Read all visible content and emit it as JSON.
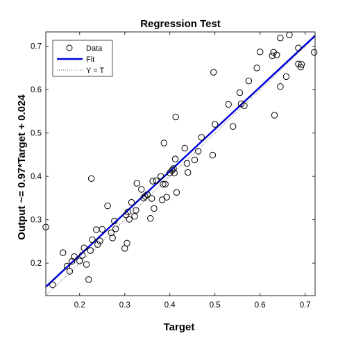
{
  "chart_data": {
    "type": "scatter",
    "title": "Regression Test",
    "xlabel": "Target",
    "ylabel": "Output ~= 0.97*Target + 0.024",
    "xlim": [
      0.125,
      0.722
    ],
    "ylim": [
      0.125,
      0.733
    ],
    "xticks": [
      0.2,
      0.3,
      0.4,
      0.5,
      0.6,
      0.7
    ],
    "yticks": [
      0.2,
      0.3,
      0.4,
      0.5,
      0.6,
      0.7
    ],
    "xtick_labels": [
      "0.2",
      "0.3",
      "0.4",
      "0.5",
      "0.6",
      "0.7"
    ],
    "ytick_labels": [
      "0.2",
      "0.3",
      "0.4",
      "0.5",
      "0.6",
      "0.7"
    ],
    "grid": false,
    "legend": {
      "placement": "top-left",
      "entries": [
        {
          "label": "Data",
          "style": "circle"
        },
        {
          "label": "Fit",
          "style": "line"
        },
        {
          "label": "Y = T",
          "style": "dotted"
        }
      ]
    },
    "fit": {
      "slope": 0.97,
      "intercept": 0.024,
      "color": "#0000dd"
    },
    "identity": {
      "color": "#555555"
    },
    "marker_color": "#000000",
    "points": [
      [
        0.125,
        0.283
      ],
      [
        0.14,
        0.15
      ],
      [
        0.163,
        0.224
      ],
      [
        0.172,
        0.193
      ],
      [
        0.178,
        0.181
      ],
      [
        0.183,
        0.204
      ],
      [
        0.188,
        0.215
      ],
      [
        0.2,
        0.205
      ],
      [
        0.206,
        0.218
      ],
      [
        0.21,
        0.235
      ],
      [
        0.215,
        0.197
      ],
      [
        0.22,
        0.162
      ],
      [
        0.224,
        0.229
      ],
      [
        0.226,
        0.395
      ],
      [
        0.228,
        0.254
      ],
      [
        0.237,
        0.277
      ],
      [
        0.24,
        0.243
      ],
      [
        0.245,
        0.251
      ],
      [
        0.25,
        0.278
      ],
      [
        0.262,
        0.332
      ],
      [
        0.27,
        0.27
      ],
      [
        0.273,
        0.258
      ],
      [
        0.277,
        0.297
      ],
      [
        0.28,
        0.279
      ],
      [
        0.3,
        0.234
      ],
      [
        0.303,
        0.311
      ],
      [
        0.305,
        0.246
      ],
      [
        0.307,
        0.318
      ],
      [
        0.31,
        0.301
      ],
      [
        0.315,
        0.34
      ],
      [
        0.322,
        0.308
      ],
      [
        0.325,
        0.322
      ],
      [
        0.327,
        0.384
      ],
      [
        0.337,
        0.37
      ],
      [
        0.342,
        0.35
      ],
      [
        0.345,
        0.354
      ],
      [
        0.35,
        0.358
      ],
      [
        0.357,
        0.303
      ],
      [
        0.36,
        0.349
      ],
      [
        0.362,
        0.389
      ],
      [
        0.365,
        0.326
      ],
      [
        0.37,
        0.39
      ],
      [
        0.38,
        0.4
      ],
      [
        0.383,
        0.346
      ],
      [
        0.385,
        0.382
      ],
      [
        0.387,
        0.477
      ],
      [
        0.39,
        0.382
      ],
      [
        0.393,
        0.352
      ],
      [
        0.4,
        0.408
      ],
      [
        0.405,
        0.414
      ],
      [
        0.408,
        0.418
      ],
      [
        0.41,
        0.408
      ],
      [
        0.412,
        0.44
      ],
      [
        0.413,
        0.537
      ],
      [
        0.415,
        0.363
      ],
      [
        0.433,
        0.465
      ],
      [
        0.438,
        0.43
      ],
      [
        0.44,
        0.409
      ],
      [
        0.455,
        0.438
      ],
      [
        0.463,
        0.458
      ],
      [
        0.47,
        0.49
      ],
      [
        0.495,
        0.449
      ],
      [
        0.497,
        0.64
      ],
      [
        0.5,
        0.52
      ],
      [
        0.53,
        0.566
      ],
      [
        0.54,
        0.515
      ],
      [
        0.555,
        0.593
      ],
      [
        0.558,
        0.567
      ],
      [
        0.565,
        0.563
      ],
      [
        0.575,
        0.62
      ],
      [
        0.593,
        0.65
      ],
      [
        0.6,
        0.687
      ],
      [
        0.627,
        0.678
      ],
      [
        0.63,
        0.686
      ],
      [
        0.632,
        0.541
      ],
      [
        0.637,
        0.68
      ],
      [
        0.645,
        0.719
      ],
      [
        0.645,
        0.607
      ],
      [
        0.658,
        0.63
      ],
      [
        0.665,
        0.726
      ],
      [
        0.685,
        0.696
      ],
      [
        0.685,
        0.659
      ],
      [
        0.69,
        0.652
      ],
      [
        0.692,
        0.658
      ],
      [
        0.72,
        0.686
      ]
    ]
  }
}
